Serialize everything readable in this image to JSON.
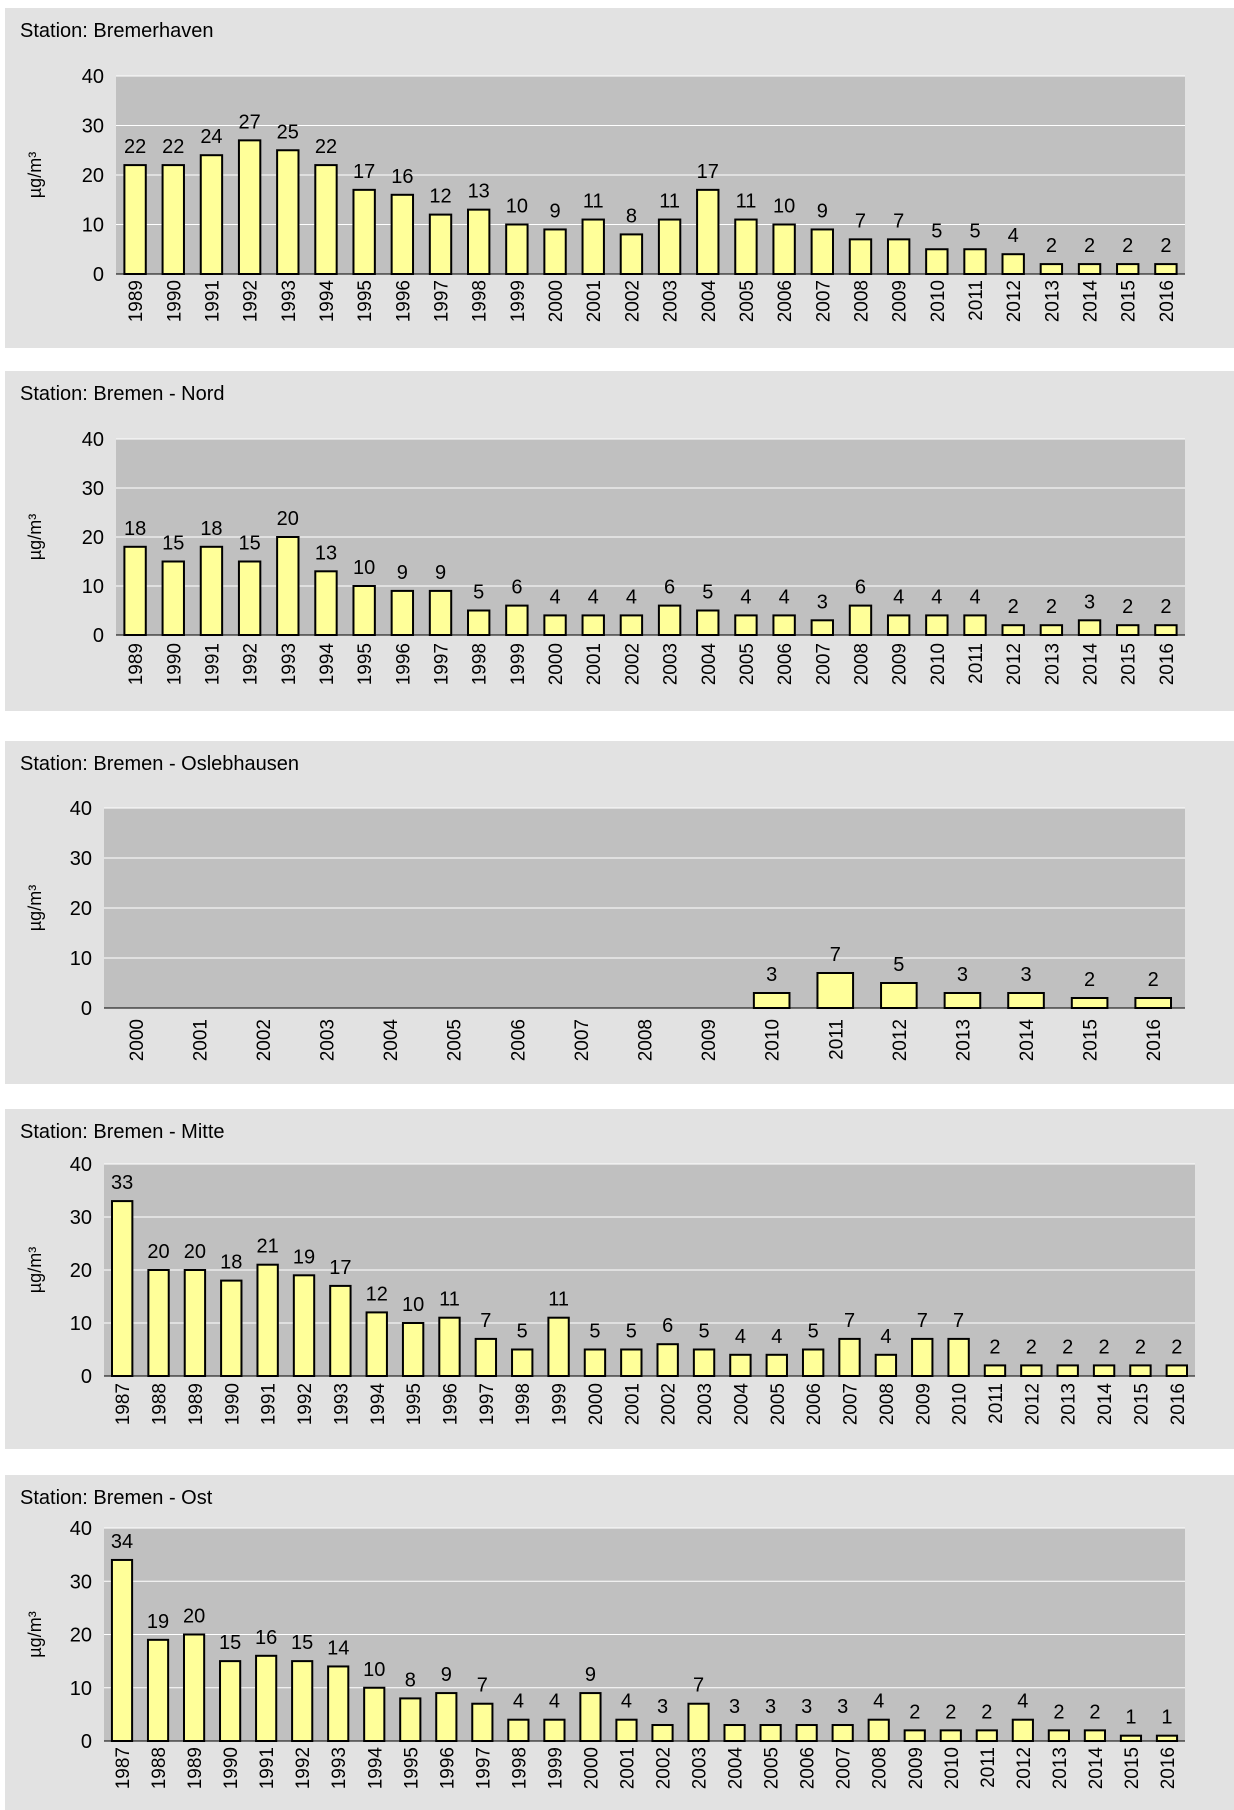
{
  "colors": {
    "panel_background": "#e2e2e2",
    "plot_background": "#c0c0c0",
    "bar_fill": "#ffff99",
    "bar_stroke": "#000000",
    "gridline": "#ffffff"
  },
  "chart_data": [
    {
      "type": "bar",
      "title": "Station: Bremerhaven",
      "xlabel": "",
      "ylabel": "µg/m³",
      "ylim": [
        0,
        40
      ],
      "yticks": [
        "0",
        "10",
        "20",
        "30",
        "40"
      ],
      "grid": true,
      "categories": [
        "1989",
        "1990",
        "1991",
        "1992",
        "1993",
        "1994",
        "1995",
        "1996",
        "1997",
        "1998",
        "1999",
        "2000",
        "2001",
        "2002",
        "2003",
        "2004",
        "2005",
        "2006",
        "2007",
        "2008",
        "2009",
        "2010",
        "2011",
        "2012",
        "2013",
        "2014",
        "2015",
        "2016"
      ],
      "values": [
        22,
        22,
        24,
        27,
        25,
        22,
        17,
        16,
        12,
        13,
        10,
        9,
        11,
        8,
        11,
        17,
        11,
        10,
        9,
        7,
        7,
        5,
        5,
        4,
        2,
        2,
        2,
        2
      ],
      "labels": [
        "22",
        "22",
        "24",
        "27",
        "25",
        "22",
        "17",
        "16",
        "12",
        "13",
        "10",
        "9",
        "11",
        "8",
        "11",
        "17",
        "11",
        "10",
        "9",
        "7",
        "7",
        "5",
        "5",
        "4",
        "2",
        "2",
        "2",
        "2"
      ]
    },
    {
      "type": "bar",
      "title": "Station: Bremen - Nord",
      "xlabel": "",
      "ylabel": "µg/m³",
      "ylim": [
        0,
        40
      ],
      "yticks": [
        "0",
        "10",
        "20",
        "30",
        "40"
      ],
      "grid": true,
      "categories": [
        "1989",
        "1990",
        "1991",
        "1992",
        "1993",
        "1994",
        "1995",
        "1996",
        "1997",
        "1998",
        "1999",
        "2000",
        "2001",
        "2002",
        "2003",
        "2004",
        "2005",
        "2006",
        "2007",
        "2008",
        "2009",
        "2010",
        "2011",
        "2012",
        "2013",
        "2014",
        "2015",
        "2016"
      ],
      "values": [
        18,
        15,
        18,
        15,
        20,
        13,
        10,
        9,
        9,
        5,
        6,
        4,
        4,
        4,
        6,
        5,
        4,
        4,
        3,
        6,
        4,
        4,
        4,
        2,
        2,
        3,
        2,
        2
      ],
      "labels": [
        "18",
        "15",
        "18",
        "15",
        "20",
        "13",
        "10",
        "9",
        "9",
        "5",
        "6",
        "4",
        "4",
        "4",
        "6",
        "5",
        "4",
        "4",
        "3",
        "6",
        "4",
        "4",
        "4",
        "2",
        "2",
        "3",
        "2",
        "2"
      ]
    },
    {
      "type": "bar",
      "title": "Station: Bremen - Oslebhausen",
      "xlabel": "",
      "ylabel": "µg/m³",
      "ylim": [
        0,
        40
      ],
      "yticks": [
        "0",
        "10",
        "20",
        "30",
        "40"
      ],
      "grid": true,
      "categories": [
        "2000",
        "2001",
        "2002",
        "2003",
        "2004",
        "2005",
        "2006",
        "2007",
        "2008",
        "2009",
        "2010",
        "2011",
        "2012",
        "2013",
        "2014",
        "2015",
        "2016"
      ],
      "values": [
        null,
        null,
        null,
        null,
        null,
        null,
        null,
        null,
        null,
        null,
        3,
        7,
        5,
        3,
        3,
        2,
        2
      ],
      "labels": [
        "",
        "",
        "",
        "",
        "",
        "",
        "",
        "",
        "",
        "",
        "3",
        "7",
        "5",
        "3",
        "3",
        "2",
        "2"
      ]
    },
    {
      "type": "bar",
      "title": "Station: Bremen - Mitte",
      "xlabel": "",
      "ylabel": "µg/m³",
      "ylim": [
        0,
        40
      ],
      "yticks": [
        "0",
        "10",
        "20",
        "30",
        "40"
      ],
      "grid": true,
      "categories": [
        "1987",
        "1988",
        "1989",
        "1990",
        "1991",
        "1992",
        "1993",
        "1994",
        "1995",
        "1996",
        "1997",
        "1998",
        "1999",
        "2000",
        "2001",
        "2002",
        "2003",
        "2004",
        "2005",
        "2006",
        "2007",
        "2008",
        "2009",
        "2010",
        "2011",
        "2012",
        "2013",
        "2014",
        "2015",
        "2016"
      ],
      "values": [
        33,
        20,
        20,
        18,
        21,
        19,
        17,
        12,
        10,
        11,
        7,
        5,
        11,
        5,
        5,
        6,
        5,
        4,
        4,
        5,
        7,
        4,
        7,
        7,
        2,
        2,
        2,
        2,
        2,
        2
      ],
      "labels": [
        "33",
        "20",
        "20",
        "18",
        "21",
        "19",
        "17",
        "12",
        "10",
        "11",
        "7",
        "5",
        "11",
        "5",
        "5",
        "6",
        "5",
        "4",
        "4",
        "5",
        "7",
        "4",
        "7",
        "7",
        "2",
        "2",
        "2",
        "2",
        "2",
        "2"
      ]
    },
    {
      "type": "bar",
      "title": "Station: Bremen - Ost",
      "xlabel": "",
      "ylabel": "µg/m³",
      "ylim": [
        0,
        40
      ],
      "yticks": [
        "0",
        "10",
        "20",
        "30",
        "40"
      ],
      "grid": true,
      "categories": [
        "1987",
        "1988",
        "1989",
        "1990",
        "1991",
        "1992",
        "1993",
        "1994",
        "1995",
        "1996",
        "1997",
        "1998",
        "1999",
        "2000",
        "2001",
        "2002",
        "2003",
        "2004",
        "2005",
        "2006",
        "2007",
        "2008",
        "2009",
        "2010",
        "2011",
        "2012",
        "2013",
        "2014",
        "2015",
        "2016"
      ],
      "values": [
        34,
        19,
        20,
        15,
        16,
        15,
        14,
        10,
        8,
        9,
        7,
        4,
        4,
        9,
        4,
        3,
        7,
        3,
        3,
        3,
        3,
        4,
        2,
        2,
        2,
        4,
        2,
        2,
        1,
        1
      ],
      "labels": [
        "34",
        "19",
        "20",
        "15",
        "16",
        "15",
        "14",
        "10",
        "8",
        "9",
        "7",
        "4",
        "4",
        "9",
        "4",
        "3",
        "7",
        "3",
        "3",
        "3",
        "3",
        "4",
        "2",
        "2",
        "2",
        "4",
        "2",
        "2",
        "1",
        "1"
      ]
    }
  ]
}
